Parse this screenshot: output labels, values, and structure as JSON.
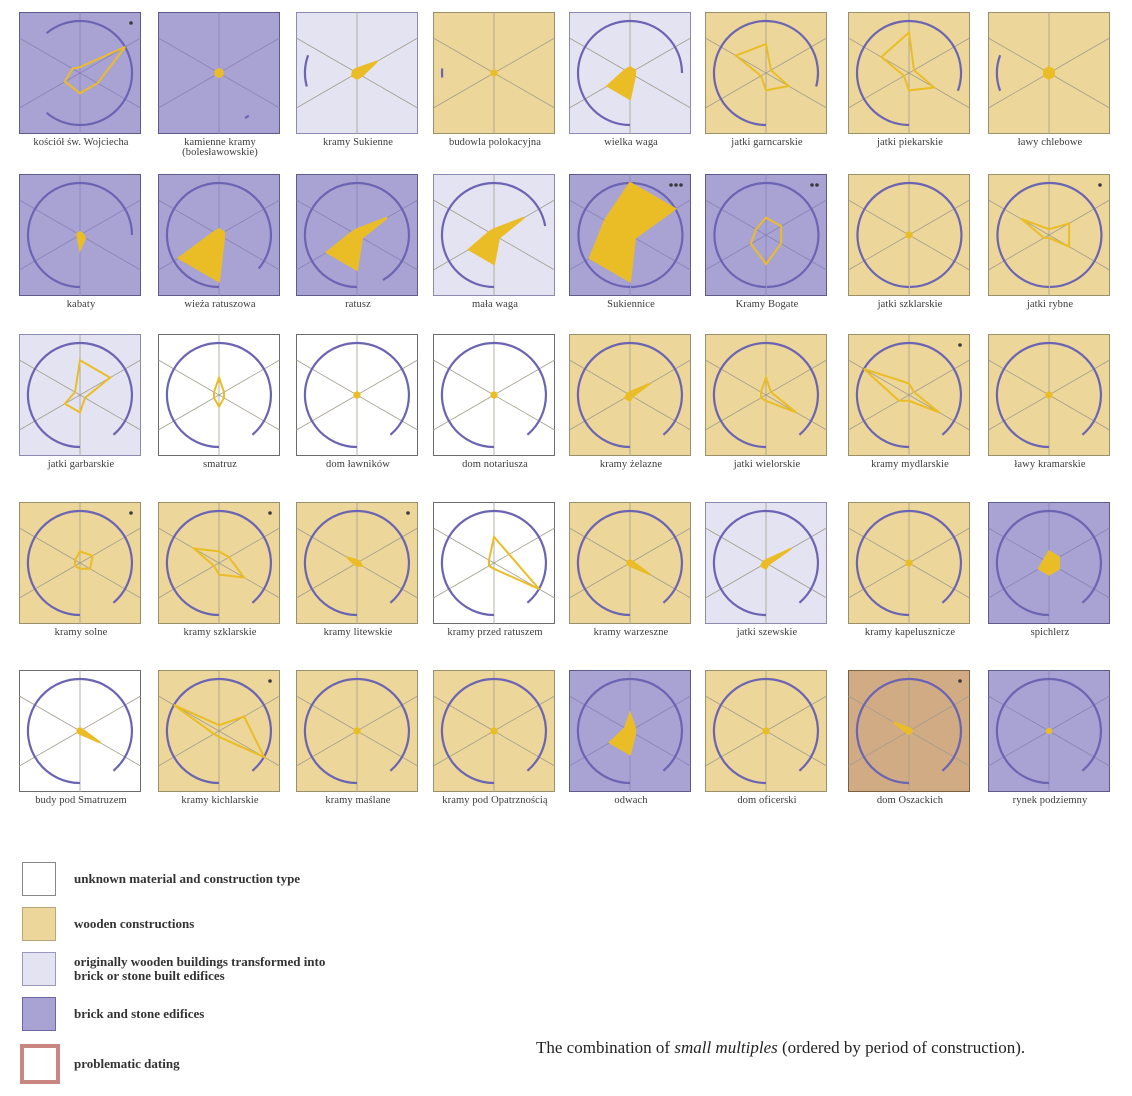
{
  "legend": {
    "items": [
      {
        "key": "unknown",
        "label": "unknown material and construction type",
        "fill": "#ffffff",
        "border": "#888888"
      },
      {
        "key": "wooden",
        "label": "wooden constructions",
        "fill": "#ecd699",
        "border": "#b9a577"
      },
      {
        "key": "transformed",
        "label": "originally wooden buildings transformed into brick or stone built edifices",
        "fill": "#e4e3f2",
        "border": "#9a98bd"
      },
      {
        "key": "brick",
        "label": "brick and stone edifices",
        "fill": "#a9a3d4",
        "border": "#6c66a8"
      },
      {
        "key": "problematic",
        "label": "problematic dating",
        "fill": "#ffffff",
        "border": "#c98683"
      }
    ]
  },
  "caption": {
    "prefix": "The combination of",
    "emphasis": "small multiples",
    "suffix": "(ordered by period of construction)."
  },
  "colors": {
    "unknown": "#ffffff",
    "wooden": "#ecd699",
    "transformed": "#e4e3f2",
    "brick": "#a9a3d4",
    "problematic": "#d0ab84",
    "shape": "#eabd27",
    "arc": "#6a64b3",
    "axis": "#a39e8e"
  },
  "chart_data": {
    "type": "small-multiples",
    "order": "period of construction",
    "panels": [
      {
        "label": "kościół św. Wojciecha",
        "material": "brick",
        "shape": [
          0.9,
          0.1,
          0.15,
          0.3,
          0.35,
          0.35
        ],
        "filled": false,
        "arc": [
          140,
          400
        ],
        "dots": 1
      },
      {
        "label": "kamienne kramy (bolesławowskie)",
        "material": "brick",
        "shape": [
          0.07,
          0.07,
          0.07,
          0.07,
          0.07,
          0.07
        ],
        "filled": true,
        "arc": [
          325,
          330
        ]
      },
      {
        "label": "kramy Sukienne",
        "material": "transformed",
        "shape": [
          0.4,
          0.08,
          0.08,
          0.1,
          0.1,
          0.1
        ],
        "filled": true,
        "arc": [
          75,
          110
        ]
      },
      {
        "label": "budowla polokacyjna",
        "material": "wooden",
        "shape": [
          0.05,
          0.05,
          0.05,
          0.05,
          0.05,
          0.05
        ],
        "filled": true,
        "arc": [
          85,
          95
        ]
      },
      {
        "label": "wielka waga",
        "material": "transformed",
        "shape": [
          0.1,
          0.1,
          0.1,
          0.45,
          0.45,
          0.1
        ],
        "filled": true,
        "arc": [
          0,
          270
        ]
      },
      {
        "label": "jatki garncarskie",
        "material": "wooden",
        "shape": [
          0.1,
          0.5,
          0.6,
          0.1,
          0.3,
          0.45
        ],
        "filled": false,
        "arc": [
          0,
          285
        ]
      },
      {
        "label": "jatki piekarskie",
        "material": "wooden",
        "shape": [
          0.1,
          0.7,
          0.55,
          0.1,
          0.3,
          0.5
        ],
        "filled": false,
        "arc": [
          0,
          290
        ]
      },
      {
        "label": "ławy chlebowe",
        "material": "wooden",
        "shape": [
          0.1,
          0.1,
          0.1,
          0.1,
          0.1,
          0.1
        ],
        "filled": true,
        "arc": [
          70,
          110
        ]
      },
      {
        "label": "kabaty",
        "material": "brick",
        "shape": [
          0.05,
          0.05,
          0.05,
          0.05,
          0.25,
          0.1
        ],
        "filled": true,
        "arc": [
          0,
          270
        ]
      },
      {
        "label": "wieża ratuszowa",
        "material": "brick",
        "shape": [
          0.1,
          0.1,
          0.1,
          0.8,
          0.8,
          0.1
        ],
        "filled": true,
        "arc": [
          0,
          310
        ]
      },
      {
        "label": "ratusz",
        "material": "brick",
        "shape": [
          0.6,
          0.1,
          0.1,
          0.6,
          0.6,
          0.1
        ],
        "filled": true,
        "arc": [
          0,
          330
        ]
      },
      {
        "label": "mała waga",
        "material": "transformed",
        "shape": [
          0.6,
          0.1,
          0.1,
          0.5,
          0.5,
          0.1
        ],
        "filled": true,
        "arc": [
          0,
          260
        ]
      },
      {
        "label": "Sukiennice",
        "material": "brick",
        "shape": [
          0.9,
          0.9,
          0.5,
          0.8,
          0.8,
          0.1
        ],
        "filled": true,
        "arc": [
          0,
          390
        ],
        "dots": 3
      },
      {
        "label": "Kramy Bogate",
        "material": "brick",
        "shape": [
          0.3,
          0.3,
          0.2,
          0.3,
          0.5,
          0.3
        ],
        "filled": false,
        "arc": [
          0,
          390
        ],
        "dots": 2
      },
      {
        "label": "jatki szklarskie",
        "material": "wooden",
        "shape": [
          0.05,
          0.05,
          0.05,
          0.05,
          0.05,
          0.05
        ],
        "filled": true,
        "arc": [
          0,
          390
        ]
      },
      {
        "label": "jatki rybne",
        "material": "wooden",
        "shape": [
          0.4,
          0.1,
          0.55,
          0.1,
          0.05,
          0.4
        ],
        "filled": false,
        "arc": [
          0,
          390
        ],
        "dots": 1
      },
      {
        "label": "jatki garbarskie",
        "material": "transformed",
        "shape": [
          0.6,
          0.6,
          0.1,
          0.3,
          0.3,
          0.1
        ],
        "filled": false,
        "arc": [
          0,
          320
        ]
      },
      {
        "label": "smatruz",
        "material": "unknown",
        "shape": [
          0.1,
          0.3,
          0.1,
          0.1,
          0.2,
          0.1
        ],
        "filled": false,
        "arc": [
          0,
          320
        ]
      },
      {
        "label": "dom ławników",
        "material": "unknown",
        "shape": [
          0.05,
          0.05,
          0.05,
          0.05,
          0.05,
          0.05
        ],
        "filled": true,
        "arc": [
          0,
          320
        ]
      },
      {
        "label": "dom notariusza",
        "material": "unknown",
        "shape": [
          0.05,
          0.05,
          0.05,
          0.05,
          0.05,
          0.05
        ],
        "filled": true,
        "arc": [
          0,
          320
        ]
      },
      {
        "label": "kramy żelazne",
        "material": "wooden",
        "shape": [
          0.4,
          0.05,
          0.05,
          0.1,
          0.1,
          0.05
        ],
        "filled": true,
        "arc": [
          0,
          320
        ]
      },
      {
        "label": "jatki wielorskie",
        "material": "wooden",
        "shape": [
          0.1,
          0.3,
          0.1,
          0.1,
          0.1,
          0.6
        ],
        "filled": false,
        "arc": [
          0,
          320
        ]
      },
      {
        "label": "kramy mydlarskie",
        "material": "wooden",
        "shape": [
          0.1,
          0.2,
          0.9,
          0.2,
          0.1,
          0.6
        ],
        "filled": false,
        "arc": [
          0,
          320
        ],
        "dots": 1
      },
      {
        "label": "ławy kramarskie",
        "material": "wooden",
        "shape": [
          0.05,
          0.05,
          0.05,
          0.05,
          0.05,
          0.05
        ],
        "filled": true,
        "arc": [
          0,
          320
        ]
      },
      {
        "label": "kramy solne",
        "material": "wooden",
        "shape": [
          0.25,
          0.2,
          0.1,
          0.1,
          0.1,
          0.2
        ],
        "filled": false,
        "arc": [
          0,
          320
        ],
        "dots": 1
      },
      {
        "label": "kramy szklarskie",
        "material": "wooden",
        "shape": [
          0.2,
          0.2,
          0.5,
          0.1,
          0.2,
          0.5
        ],
        "filled": false,
        "arc": [
          0,
          320
        ],
        "dots": 1
      },
      {
        "label": "kramy litewskie",
        "material": "wooden",
        "shape": [
          0.05,
          0.05,
          0.2,
          0.05,
          0.05,
          0.1
        ],
        "filled": true,
        "arc": [
          0,
          320
        ],
        "dots": 1
      },
      {
        "label": "kramy przed ratuszem",
        "material": "unknown",
        "shape": [
          0.3,
          0.45,
          0.1,
          0.1,
          0.1,
          0.9
        ],
        "filled": false,
        "arc": [
          0,
          320
        ]
      },
      {
        "label": "kramy warzeszne",
        "material": "wooden",
        "shape": [
          0.05,
          0.05,
          0.05,
          0.05,
          0.05,
          0.4
        ],
        "filled": true,
        "arc": [
          0,
          320
        ]
      },
      {
        "label": "jatki szewskie",
        "material": "transformed",
        "shape": [
          0.5,
          0.05,
          0.05,
          0.1,
          0.1,
          0.05
        ],
        "filled": true,
        "arc": [
          0,
          320
        ]
      },
      {
        "label": "kramy kapelusznicze",
        "material": "wooden",
        "shape": [
          0.05,
          0.05,
          0.05,
          0.05,
          0.05,
          0.05
        ],
        "filled": true,
        "arc": [
          0,
          320
        ]
      },
      {
        "label": "spichlerz",
        "material": "brick",
        "shape": [
          0.2,
          0.2,
          0.1,
          0.2,
          0.2,
          0.2
        ],
        "filled": true,
        "arc": [
          0,
          320
        ]
      },
      {
        "label": "budy pod Smatruzem",
        "material": "unknown",
        "shape": [
          0.05,
          0.05,
          0.05,
          0.05,
          0.05,
          0.4
        ],
        "filled": true,
        "arc": [
          0,
          320
        ]
      },
      {
        "label": "kramy kichlarskie",
        "material": "wooden",
        "shape": [
          0.5,
          0.1,
          0.9,
          0.1,
          0.1,
          0.9
        ],
        "filled": false,
        "arc": [
          0,
          320
        ],
        "dots": 1
      },
      {
        "label": "kramy maślane",
        "material": "wooden",
        "shape": [
          0.05,
          0.05,
          0.05,
          0.05,
          0.05,
          0.05
        ],
        "filled": true,
        "arc": [
          0,
          320
        ]
      },
      {
        "label": "kramy pod Opatrznością",
        "material": "wooden",
        "shape": [
          0.05,
          0.05,
          0.05,
          0.05,
          0.05,
          0.05
        ],
        "filled": true,
        "arc": [
          0,
          320
        ]
      },
      {
        "label": "odwach",
        "material": "brick",
        "shape": [
          0.1,
          0.3,
          0.1,
          0.4,
          0.4,
          0.1
        ],
        "filled": true,
        "arc": [
          0,
          320
        ]
      },
      {
        "label": "dom oficerski",
        "material": "wooden",
        "shape": [
          0.05,
          0.05,
          0.05,
          0.05,
          0.05,
          0.05
        ],
        "filled": true,
        "arc": [
          0,
          320
        ]
      },
      {
        "label": "dom Oszackich",
        "material": "problematic",
        "shape": [
          0.05,
          0.05,
          0.3,
          0.05,
          0.05,
          0.05
        ],
        "filled": true,
        "arc": [
          0,
          320
        ],
        "dots": 1
      },
      {
        "label": "rynek podziemny",
        "material": "brick",
        "shape": [
          0.04,
          0.04,
          0.04,
          0.04,
          0.04,
          0.04
        ],
        "filled": true,
        "arc": [
          0,
          320
        ]
      }
    ]
  }
}
